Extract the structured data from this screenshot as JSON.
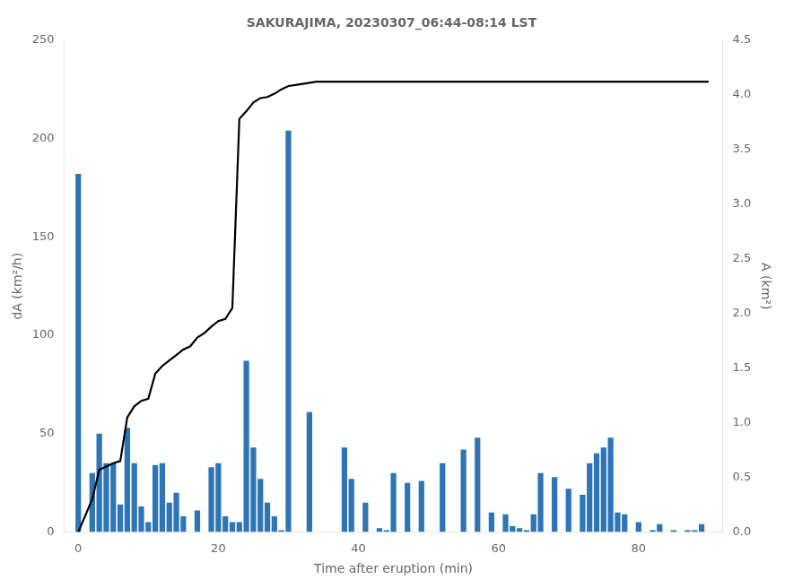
{
  "chart_data": {
    "type": "bar",
    "title": "SAKURAJIMA, 20230307_06:44-08:14 LST",
    "xlabel": "Time after eruption (min)",
    "ylabel": "dA (km²/h)",
    "y2label": "A (km²)",
    "xlim": [
      -2,
      92
    ],
    "xticks": [
      0,
      20,
      40,
      60,
      80
    ],
    "ylim": [
      0,
      250
    ],
    "yticks": [
      0,
      50,
      100,
      150,
      200,
      250
    ],
    "y2lim": [
      0,
      4.5
    ],
    "y2ticks": [
      {
        "value": 0,
        "label": "0.0"
      },
      0.5,
      {
        "value": 1.0,
        "label": "1.0"
      },
      1.5,
      {
        "value": 2.0,
        "label": "2.0"
      },
      2.5,
      {
        "value": 3.0,
        "label": "3.0"
      },
      3.5,
      {
        "value": 4.0,
        "label": "4.0"
      },
      4.5
    ],
    "grid": false,
    "series": [
      {
        "type": "bar",
        "color": "#2e75b6",
        "x": [
          0,
          2,
          3,
          4,
          5,
          6,
          7,
          8,
          9,
          10,
          11,
          12,
          13,
          14,
          15,
          17,
          19,
          20,
          21,
          22,
          23,
          24,
          25,
          26,
          27,
          28,
          29,
          30,
          33,
          38,
          39,
          41,
          43,
          44,
          45,
          47,
          49,
          52,
          55,
          57,
          59,
          61,
          62,
          63,
          64,
          65,
          66,
          68,
          70,
          72,
          73,
          74,
          75,
          76,
          77,
          78,
          80,
          82,
          83,
          85,
          87,
          88,
          89
        ],
        "values": [
          182,
          30,
          50,
          35,
          35,
          14,
          53,
          35,
          13,
          5,
          34,
          35,
          15,
          20,
          8,
          11,
          33,
          35,
          8,
          5,
          5,
          87,
          43,
          27,
          15,
          8,
          1,
          204,
          61,
          43,
          27,
          15,
          2,
          1,
          30,
          25,
          26,
          35,
          42,
          48,
          10,
          9,
          3,
          2,
          1,
          9,
          30,
          28,
          22,
          19,
          35,
          40,
          43,
          48,
          10,
          9,
          5,
          1,
          4,
          1,
          1,
          1,
          4
        ]
      },
      {
        "type": "line",
        "axis": "y2",
        "color": "#000000",
        "x": [
          0,
          2,
          3,
          4,
          5,
          6,
          7,
          8,
          9,
          10,
          11,
          12,
          13,
          14,
          15,
          16,
          17,
          18,
          19,
          20,
          21,
          22,
          23,
          24,
          25,
          26,
          27,
          28,
          29,
          30,
          31,
          32,
          33,
          34,
          35,
          40,
          45,
          50,
          55,
          60,
          65,
          70,
          75,
          80,
          85,
          90
        ],
        "values": [
          0.0,
          0.3,
          0.57,
          0.6,
          0.63,
          0.65,
          1.05,
          1.15,
          1.2,
          1.22,
          1.45,
          1.52,
          1.57,
          1.62,
          1.67,
          1.7,
          1.78,
          1.82,
          1.88,
          1.93,
          1.95,
          2.05,
          3.78,
          3.85,
          3.93,
          3.97,
          3.98,
          4.01,
          4.05,
          4.08,
          4.09,
          4.1,
          4.11,
          4.12,
          4.12,
          4.12,
          4.12,
          4.12,
          4.12,
          4.12,
          4.12,
          4.12,
          4.12,
          4.12,
          4.12,
          4.12
        ]
      }
    ]
  }
}
